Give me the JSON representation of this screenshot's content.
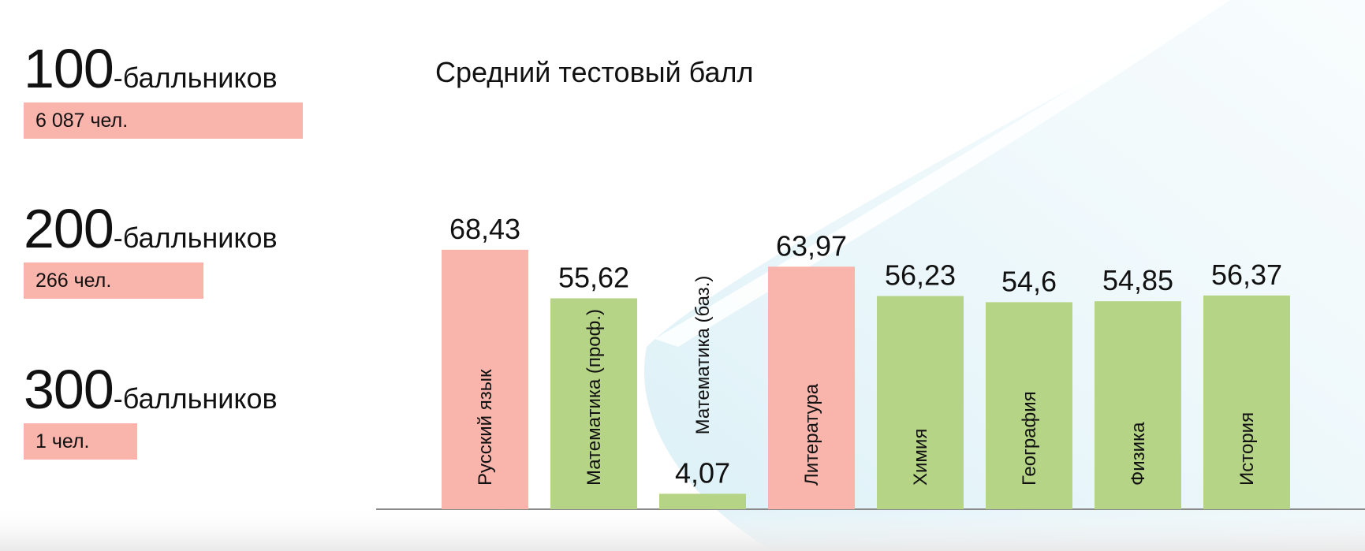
{
  "stats": [
    {
      "number": "100",
      "suffix": "-балльников",
      "count": "6 087 чел."
    },
    {
      "number": "200",
      "suffix": "-балльников",
      "count": "266 чел."
    },
    {
      "number": "300",
      "suffix": "-балльников",
      "count": "1 чел."
    }
  ],
  "colors": {
    "pink": "#f9b4ac",
    "green": "#b6d486",
    "baseline": "#8a8a8a"
  },
  "chart_data": {
    "type": "bar",
    "title": "Средний тестовый балл",
    "xlabel": "",
    "ylabel": "",
    "ylim": [
      0,
      80
    ],
    "grid": false,
    "categories": [
      "Русский язык",
      "Математика (проф.)",
      "Математика (баз.)",
      "Литература",
      "Химия",
      "География",
      "Физика",
      "История"
    ],
    "values": [
      68.43,
      55.62,
      4.07,
      63.97,
      56.23,
      54.6,
      54.85,
      56.37
    ],
    "value_labels": [
      "68,43",
      "55,62",
      "4,07",
      "63,97",
      "56,23",
      "54,6",
      "54,85",
      "56,37"
    ],
    "bar_colors": [
      "pink",
      "green",
      "green",
      "pink",
      "green",
      "green",
      "green",
      "green"
    ]
  }
}
